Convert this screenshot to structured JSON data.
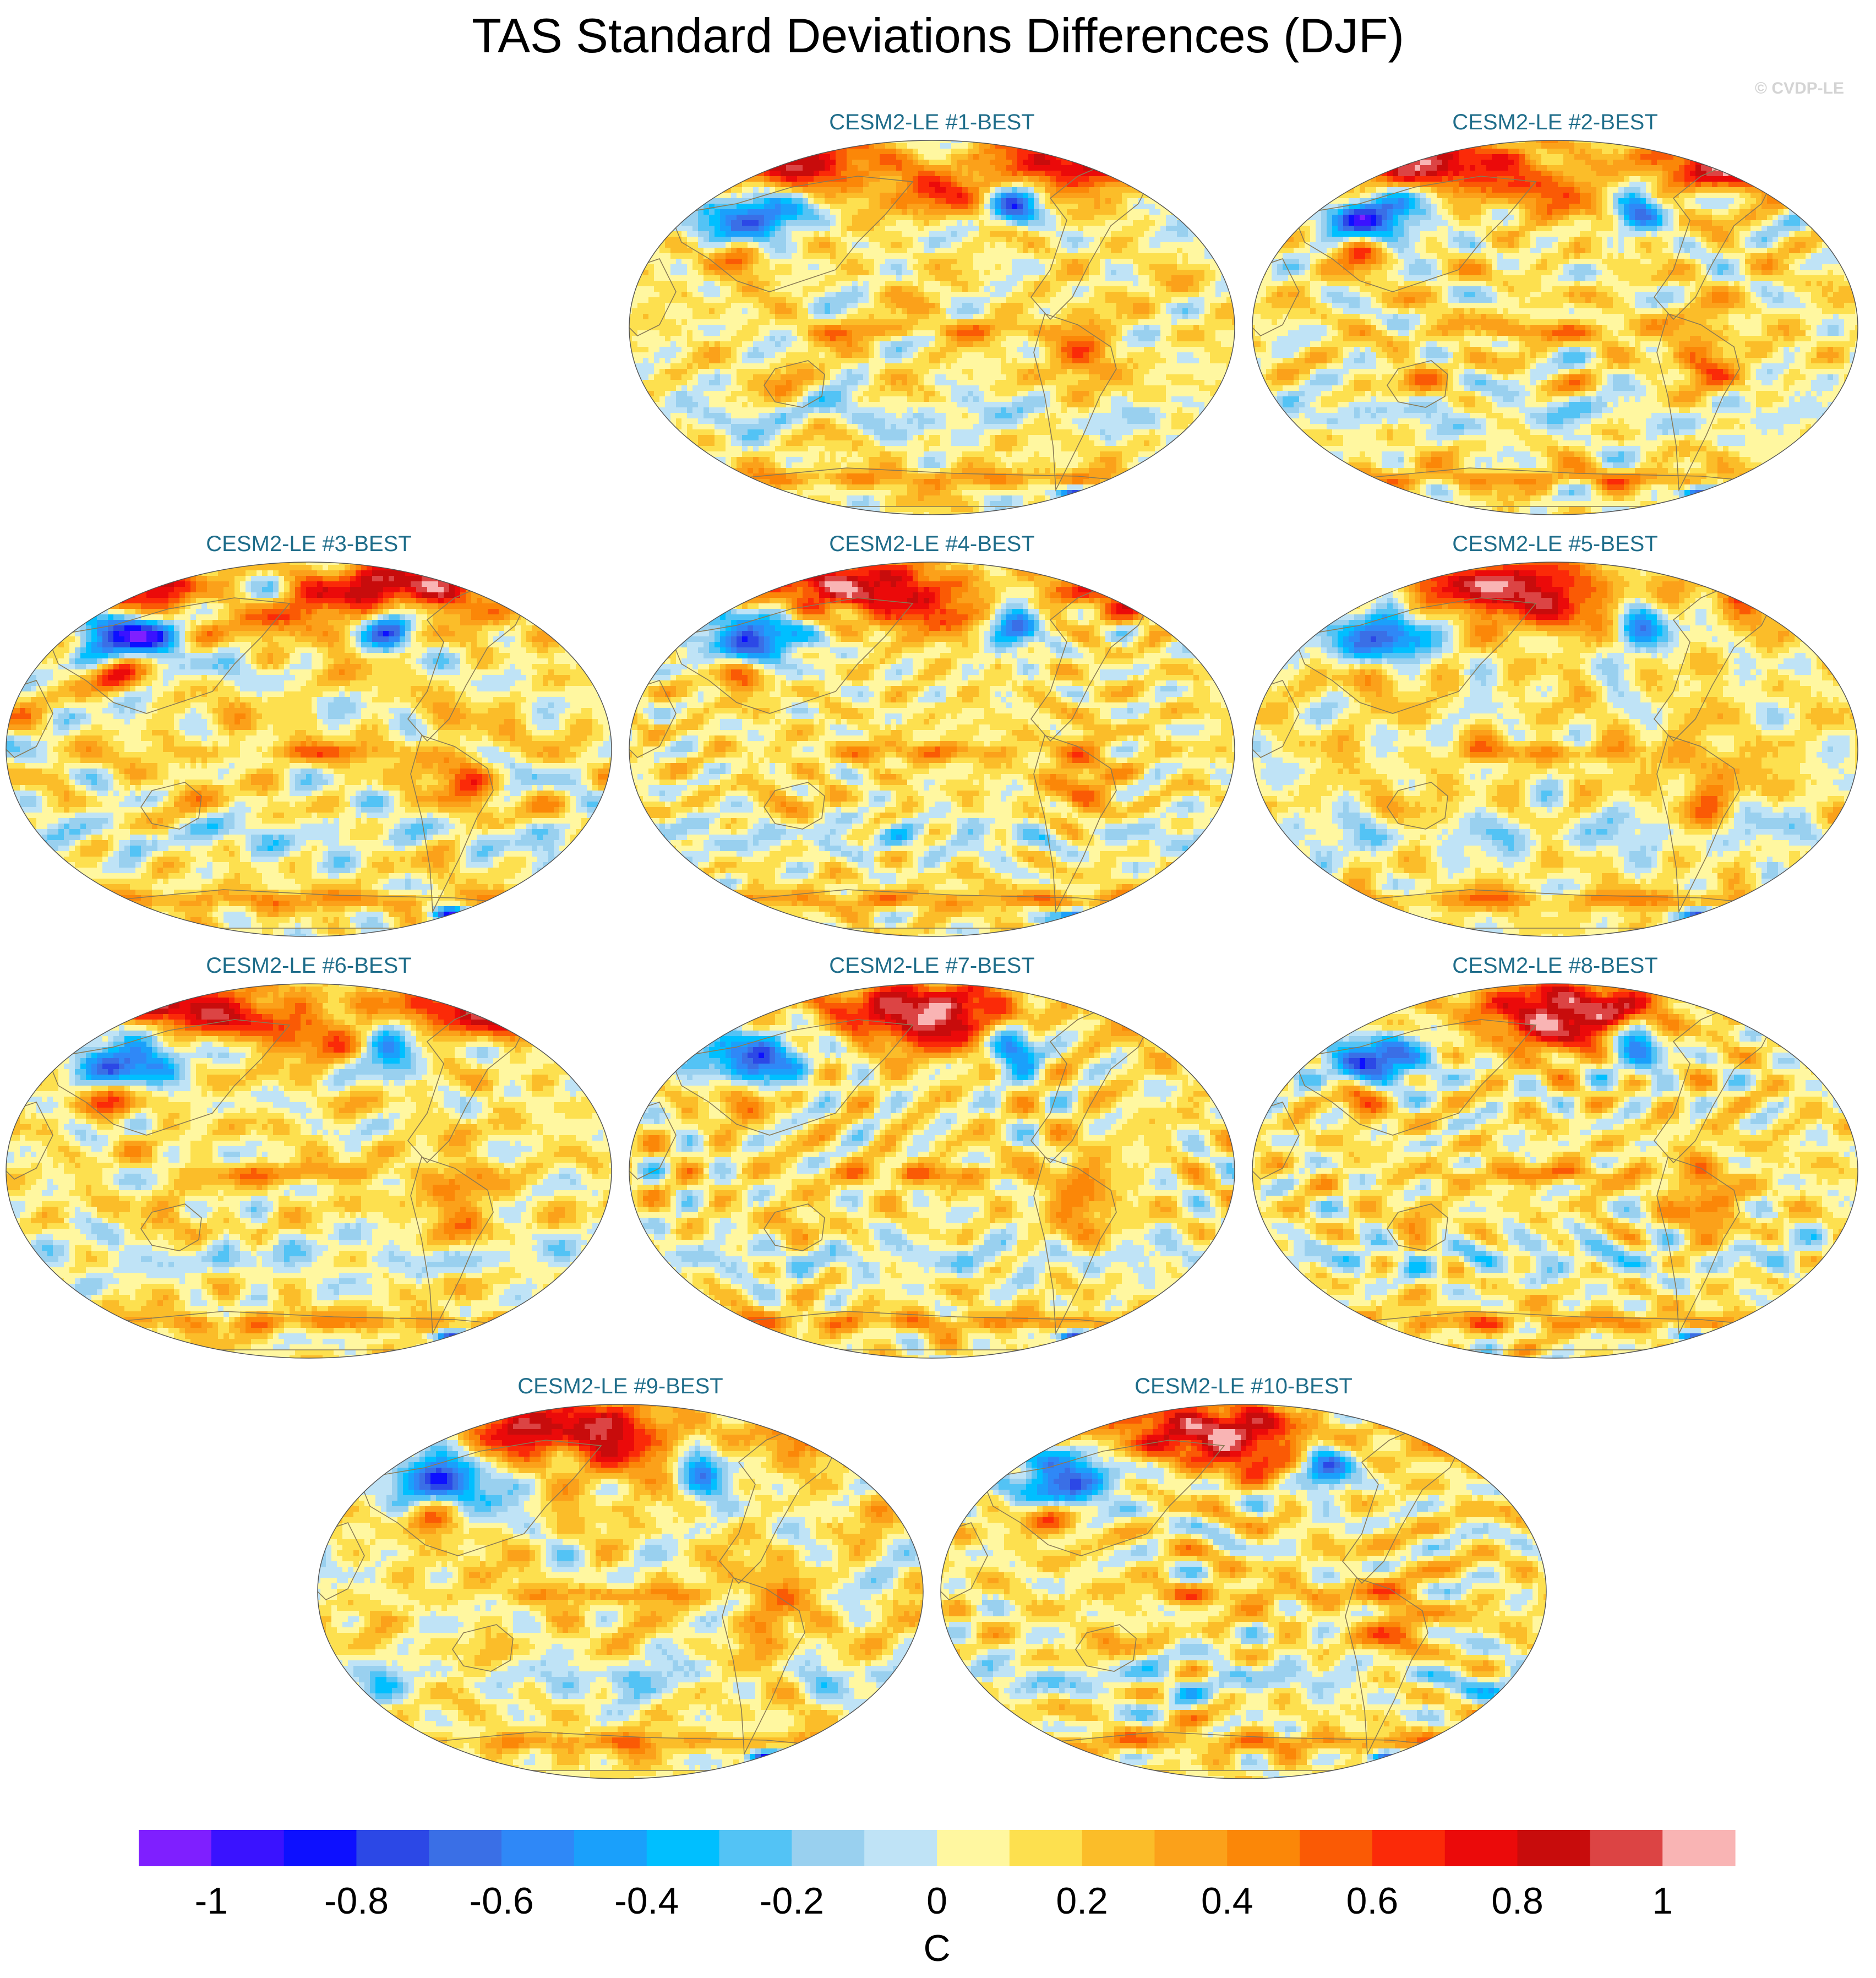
{
  "title": "TAS Standard Deviations Differences (DJF)",
  "watermark": "© CVDP-LE",
  "panels": [
    {
      "id": 1,
      "title": "CESM2-LE #1-BEST",
      "seed": 11
    },
    {
      "id": 2,
      "title": "CESM2-LE #2-BEST",
      "seed": 23
    },
    {
      "id": 3,
      "title": "CESM2-LE #3-BEST",
      "seed": 37
    },
    {
      "id": 4,
      "title": "CESM2-LE #4-BEST",
      "seed": 41
    },
    {
      "id": 5,
      "title": "CESM2-LE #5-BEST",
      "seed": 53
    },
    {
      "id": 6,
      "title": "CESM2-LE #6-BEST",
      "seed": 67
    },
    {
      "id": 7,
      "title": "CESM2-LE #7-BEST",
      "seed": 71
    },
    {
      "id": 8,
      "title": "CESM2-LE #8-BEST",
      "seed": 83
    },
    {
      "id": 9,
      "title": "CESM2-LE #9-BEST",
      "seed": 97
    },
    {
      "id": 10,
      "title": "CESM2-LE #10-BEST",
      "seed": 103
    }
  ],
  "colorbar": {
    "unit": "C",
    "tick_labels": [
      "-1",
      "-0.8",
      "-0.6",
      "-0.4",
      "-0.2",
      "0",
      "0.2",
      "0.4",
      "0.6",
      "0.8",
      "1"
    ],
    "tick_values": [
      -1,
      -0.8,
      -0.6,
      -0.4,
      -0.2,
      0,
      0.2,
      0.4,
      0.6,
      0.8,
      1
    ],
    "colors": [
      "#7f1fff",
      "#3a12ff",
      "#0d10ff",
      "#2c48e6",
      "#3a6fe6",
      "#2f88f7",
      "#1aa0fb",
      "#00bfff",
      "#53c3f5",
      "#99d0ef",
      "#bfe3f6",
      "#fff7a0",
      "#fde04f",
      "#fbbd29",
      "#fba11a",
      "#fb8708",
      "#fa5a05",
      "#fb2a08",
      "#eb0a0a",
      "#c80c0c",
      "#dc4444",
      "#f9b4b4"
    ]
  }
}
